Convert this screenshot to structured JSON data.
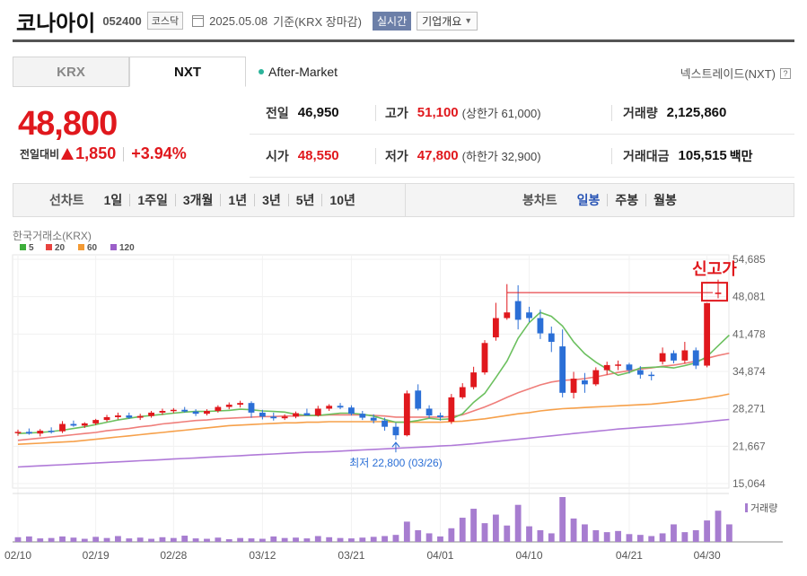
{
  "header": {
    "name": "코나아이",
    "code": "052400",
    "market": "코스닥",
    "date": "2025.05.08",
    "basis": "기준(KRX 장마감)",
    "realtime_label": "실시간",
    "company_label": "기업개요"
  },
  "tabs": [
    {
      "label": "KRX"
    },
    {
      "label": "NXT"
    }
  ],
  "after_market": "After-Market",
  "nxt_label": "넥스트레이드(NXT)",
  "price": {
    "current": "48,800",
    "change_label": "전일대비",
    "change": "1,850",
    "change_pct": "+3.94%"
  },
  "stats": {
    "prev_close": {
      "label": "전일",
      "value": "46,950"
    },
    "high": {
      "label": "고가",
      "value": "51,100",
      "sub": "(상한가 61,000)"
    },
    "volume": {
      "label": "거래량",
      "value": "2,125,860"
    },
    "open": {
      "label": "시가",
      "value": "48,550"
    },
    "low": {
      "label": "저가",
      "value": "47,800",
      "sub": "(하한가 32,900)"
    },
    "trade_value": {
      "label": "거래대금",
      "value": "105,515",
      "unit": "백만"
    }
  },
  "periods": {
    "label": "선차트",
    "items": [
      "1일",
      "1주일",
      "3개월",
      "1년",
      "3년",
      "5년",
      "10년"
    ]
  },
  "candle_periods": {
    "label": "봉차트",
    "items": [
      "일봉",
      "주봉",
      "월봉"
    ],
    "selected": "일봉"
  },
  "chart_data": {
    "type": "candlestick",
    "source_label": "한국거래소(KRX)",
    "legend": [
      {
        "label": "5",
        "color": "#3dae3a"
      },
      {
        "label": "20",
        "color": "#e8433f"
      },
      {
        "label": "60",
        "color": "#f39a34"
      },
      {
        "label": "120",
        "color": "#9b5fc9"
      }
    ],
    "y_ticks": [
      "54,685",
      "48,081",
      "41,478",
      "34,874",
      "28,271",
      "21,667",
      "15,064"
    ],
    "y_range": [
      15064,
      54685
    ],
    "x_ticks": [
      "02/10",
      "02/19",
      "02/28",
      "03/12",
      "03/21",
      "04/01",
      "04/10",
      "04/21",
      "04/30"
    ],
    "new_high_label": "신고가",
    "low_annotation": "최저 22,800 (03/26)",
    "volume_label": "거래량",
    "up_color": "#e0181d",
    "down_color": "#2b6fd6",
    "candles": [
      {
        "o": 24000,
        "h": 24600,
        "l": 23500,
        "c": 24200
      },
      {
        "o": 24200,
        "h": 24800,
        "l": 23700,
        "c": 23900
      },
      {
        "o": 23900,
        "h": 24700,
        "l": 23400,
        "c": 24400
      },
      {
        "o": 24400,
        "h": 25000,
        "l": 23900,
        "c": 24300
      },
      {
        "o": 24300,
        "h": 26100,
        "l": 24000,
        "c": 25600
      },
      {
        "o": 25600,
        "h": 26200,
        "l": 25100,
        "c": 25300
      },
      {
        "o": 25300,
        "h": 25900,
        "l": 24900,
        "c": 25700
      },
      {
        "o": 25700,
        "h": 26500,
        "l": 25400,
        "c": 26300
      },
      {
        "o": 26300,
        "h": 27200,
        "l": 26000,
        "c": 26800
      },
      {
        "o": 26800,
        "h": 27600,
        "l": 26400,
        "c": 27100
      },
      {
        "o": 27100,
        "h": 27600,
        "l": 26500,
        "c": 26700
      },
      {
        "o": 26700,
        "h": 27400,
        "l": 26300,
        "c": 27000
      },
      {
        "o": 27000,
        "h": 27900,
        "l": 26700,
        "c": 27600
      },
      {
        "o": 27600,
        "h": 28300,
        "l": 27200,
        "c": 27900
      },
      {
        "o": 27900,
        "h": 28400,
        "l": 27500,
        "c": 28100
      },
      {
        "o": 28100,
        "h": 28600,
        "l": 27600,
        "c": 27800
      },
      {
        "o": 27800,
        "h": 28200,
        "l": 27000,
        "c": 27400
      },
      {
        "o": 27400,
        "h": 28200,
        "l": 27100,
        "c": 27900
      },
      {
        "o": 27900,
        "h": 28900,
        "l": 27600,
        "c": 28600
      },
      {
        "o": 28600,
        "h": 29400,
        "l": 28200,
        "c": 29000
      },
      {
        "o": 29000,
        "h": 29700,
        "l": 28500,
        "c": 29300
      },
      {
        "o": 29300,
        "h": 29600,
        "l": 26700,
        "c": 27600
      },
      {
        "o": 27600,
        "h": 28100,
        "l": 26400,
        "c": 26900
      },
      {
        "o": 26900,
        "h": 27600,
        "l": 26200,
        "c": 26600
      },
      {
        "o": 26600,
        "h": 27300,
        "l": 26300,
        "c": 26900
      },
      {
        "o": 26900,
        "h": 27800,
        "l": 26600,
        "c": 27500
      },
      {
        "o": 27500,
        "h": 28300,
        "l": 27200,
        "c": 27100
      },
      {
        "o": 27100,
        "h": 28800,
        "l": 26900,
        "c": 28300
      },
      {
        "o": 28300,
        "h": 29100,
        "l": 27900,
        "c": 28800
      },
      {
        "o": 28800,
        "h": 29300,
        "l": 28200,
        "c": 28500
      },
      {
        "o": 28500,
        "h": 28900,
        "l": 27100,
        "c": 27400
      },
      {
        "o": 27400,
        "h": 27900,
        "l": 26300,
        "c": 26700
      },
      {
        "o": 26700,
        "h": 27300,
        "l": 25700,
        "c": 26200
      },
      {
        "o": 26200,
        "h": 26700,
        "l": 24400,
        "c": 25100
      },
      {
        "o": 25100,
        "h": 25800,
        "l": 22800,
        "c": 23600
      },
      {
        "o": 23600,
        "h": 31500,
        "l": 23400,
        "c": 31000
      },
      {
        "o": 31500,
        "h": 32600,
        "l": 28000,
        "c": 28300
      },
      {
        "o": 28300,
        "h": 28900,
        "l": 26600,
        "c": 27100
      },
      {
        "o": 27100,
        "h": 27600,
        "l": 26200,
        "c": 26800
      },
      {
        "o": 26000,
        "h": 30900,
        "l": 25600,
        "c": 30300
      },
      {
        "o": 30300,
        "h": 32800,
        "l": 30000,
        "c": 32100
      },
      {
        "o": 32100,
        "h": 35700,
        "l": 31700,
        "c": 34700
      },
      {
        "o": 34700,
        "h": 40400,
        "l": 34300,
        "c": 39900
      },
      {
        "o": 40900,
        "h": 47000,
        "l": 40300,
        "c": 44300
      },
      {
        "o": 44300,
        "h": 50300,
        "l": 44000,
        "c": 45300
      },
      {
        "o": 47300,
        "h": 50100,
        "l": 42300,
        "c": 44000
      },
      {
        "o": 45300,
        "h": 46300,
        "l": 43600,
        "c": 44300
      },
      {
        "o": 44300,
        "h": 45800,
        "l": 40600,
        "c": 41600
      },
      {
        "o": 41600,
        "h": 42800,
        "l": 38300,
        "c": 40100
      },
      {
        "o": 39300,
        "h": 42300,
        "l": 30300,
        "c": 31100
      },
      {
        "o": 31100,
        "h": 34800,
        "l": 30100,
        "c": 33600
      },
      {
        "o": 33300,
        "h": 34600,
        "l": 31100,
        "c": 32600
      },
      {
        "o": 32600,
        "h": 35600,
        "l": 32300,
        "c": 35100
      },
      {
        "o": 35100,
        "h": 36600,
        "l": 34300,
        "c": 36000
      },
      {
        "o": 36000,
        "h": 36800,
        "l": 35100,
        "c": 36100
      },
      {
        "o": 36100,
        "h": 36400,
        "l": 34500,
        "c": 35100
      },
      {
        "o": 35100,
        "h": 35800,
        "l": 33600,
        "c": 34300
      },
      {
        "o": 34300,
        "h": 34800,
        "l": 33300,
        "c": 34100
      },
      {
        "o": 36600,
        "h": 39100,
        "l": 36100,
        "c": 38100
      },
      {
        "o": 38100,
        "h": 38600,
        "l": 36300,
        "c": 36800
      },
      {
        "o": 36800,
        "h": 40100,
        "l": 36300,
        "c": 38600
      },
      {
        "o": 38600,
        "h": 39100,
        "l": 35300,
        "c": 35900
      },
      {
        "o": 35900,
        "h": 47000,
        "l": 35600,
        "c": 46950
      },
      {
        "o": 48550,
        "h": 51100,
        "l": 47800,
        "c": 48800
      }
    ],
    "ma5": [
      23900,
      24000,
      24100,
      24250,
      24500,
      24800,
      25100,
      25500,
      25900,
      26300,
      26600,
      26900,
      27100,
      27300,
      27500,
      27700,
      27800,
      27800,
      27900,
      28000,
      28200,
      28100,
      27900,
      27800,
      27700,
      27300,
      27100,
      27100,
      27300,
      27500,
      27500,
      27300,
      27000,
      26400,
      25900,
      25900,
      26200,
      26600,
      26400,
      26500,
      27400,
      29400,
      31000,
      33800,
      36700,
      40700,
      43500,
      45300,
      44600,
      42900,
      40100,
      38000,
      36500,
      35300,
      34200,
      34700,
      35500,
      35600,
      35700,
      35500,
      35900,
      36400,
      37500,
      39400,
      41300
    ],
    "ma20": [
      22700,
      22900,
      23100,
      23300,
      23500,
      23700,
      23900,
      24100,
      24400,
      24600,
      24800,
      25100,
      25300,
      25600,
      25800,
      26000,
      26200,
      26300,
      26500,
      26600,
      26700,
      26800,
      26900,
      26900,
      27000,
      27000,
      27100,
      27100,
      27200,
      27200,
      27200,
      27200,
      27100,
      27000,
      26800,
      26800,
      26800,
      26800,
      26800,
      26900,
      27200,
      27900,
      28600,
      29400,
      30300,
      31100,
      31800,
      32500,
      33000,
      33300,
      33400,
      33600,
      33900,
      34300,
      34700,
      35000,
      35300,
      35500,
      35800,
      36000,
      36300,
      36700,
      37200,
      37700,
      38100
    ],
    "ma60": [
      22000,
      22100,
      22200,
      22300,
      22400,
      22500,
      22700,
      22900,
      23100,
      23300,
      23500,
      23700,
      23900,
      24100,
      24300,
      24500,
      24700,
      24900,
      25100,
      25300,
      25400,
      25500,
      25600,
      25700,
      25800,
      25800,
      25900,
      25900,
      26000,
      26000,
      26000,
      26000,
      26000,
      26000,
      25900,
      25900,
      25900,
      25900,
      25900,
      26000,
      26100,
      26300,
      26500,
      26800,
      27100,
      27400,
      27600,
      27900,
      28100,
      28300,
      28400,
      28500,
      28600,
      28700,
      28800,
      28900,
      29000,
      29100,
      29300,
      29500,
      29700,
      29900,
      30200,
      30500,
      30900
    ],
    "ma120": [
      18000,
      18100,
      18200,
      18300,
      18400,
      18500,
      18600,
      18700,
      18800,
      18900,
      19000,
      19100,
      19200,
      19300,
      19400,
      19500,
      19600,
      19700,
      19800,
      19900,
      20000,
      20100,
      20200,
      20300,
      20400,
      20500,
      20600,
      20650,
      20700,
      20800,
      20900,
      21000,
      21100,
      21200,
      21300,
      21400,
      21500,
      21600,
      21700,
      21800,
      21950,
      22100,
      22300,
      22500,
      22700,
      22900,
      23100,
      23300,
      23500,
      23700,
      23900,
      24100,
      24300,
      24500,
      24700,
      24850,
      25000,
      25150,
      25300,
      25450,
      25600,
      25800,
      26000,
      26200,
      26400
    ],
    "volumes": [
      12,
      14,
      9,
      10,
      14,
      11,
      8,
      13,
      10,
      15,
      9,
      11,
      8,
      12,
      10,
      16,
      9,
      8,
      11,
      7,
      10,
      9,
      8,
      14,
      10,
      11,
      9,
      15,
      12,
      10,
      9,
      11,
      13,
      15,
      18,
      52,
      30,
      22,
      14,
      35,
      62,
      85,
      48,
      70,
      42,
      95,
      40,
      30,
      22,
      115,
      60,
      45,
      30,
      25,
      28,
      20,
      18,
      15,
      22,
      45,
      25,
      30,
      55,
      80,
      45
    ]
  }
}
